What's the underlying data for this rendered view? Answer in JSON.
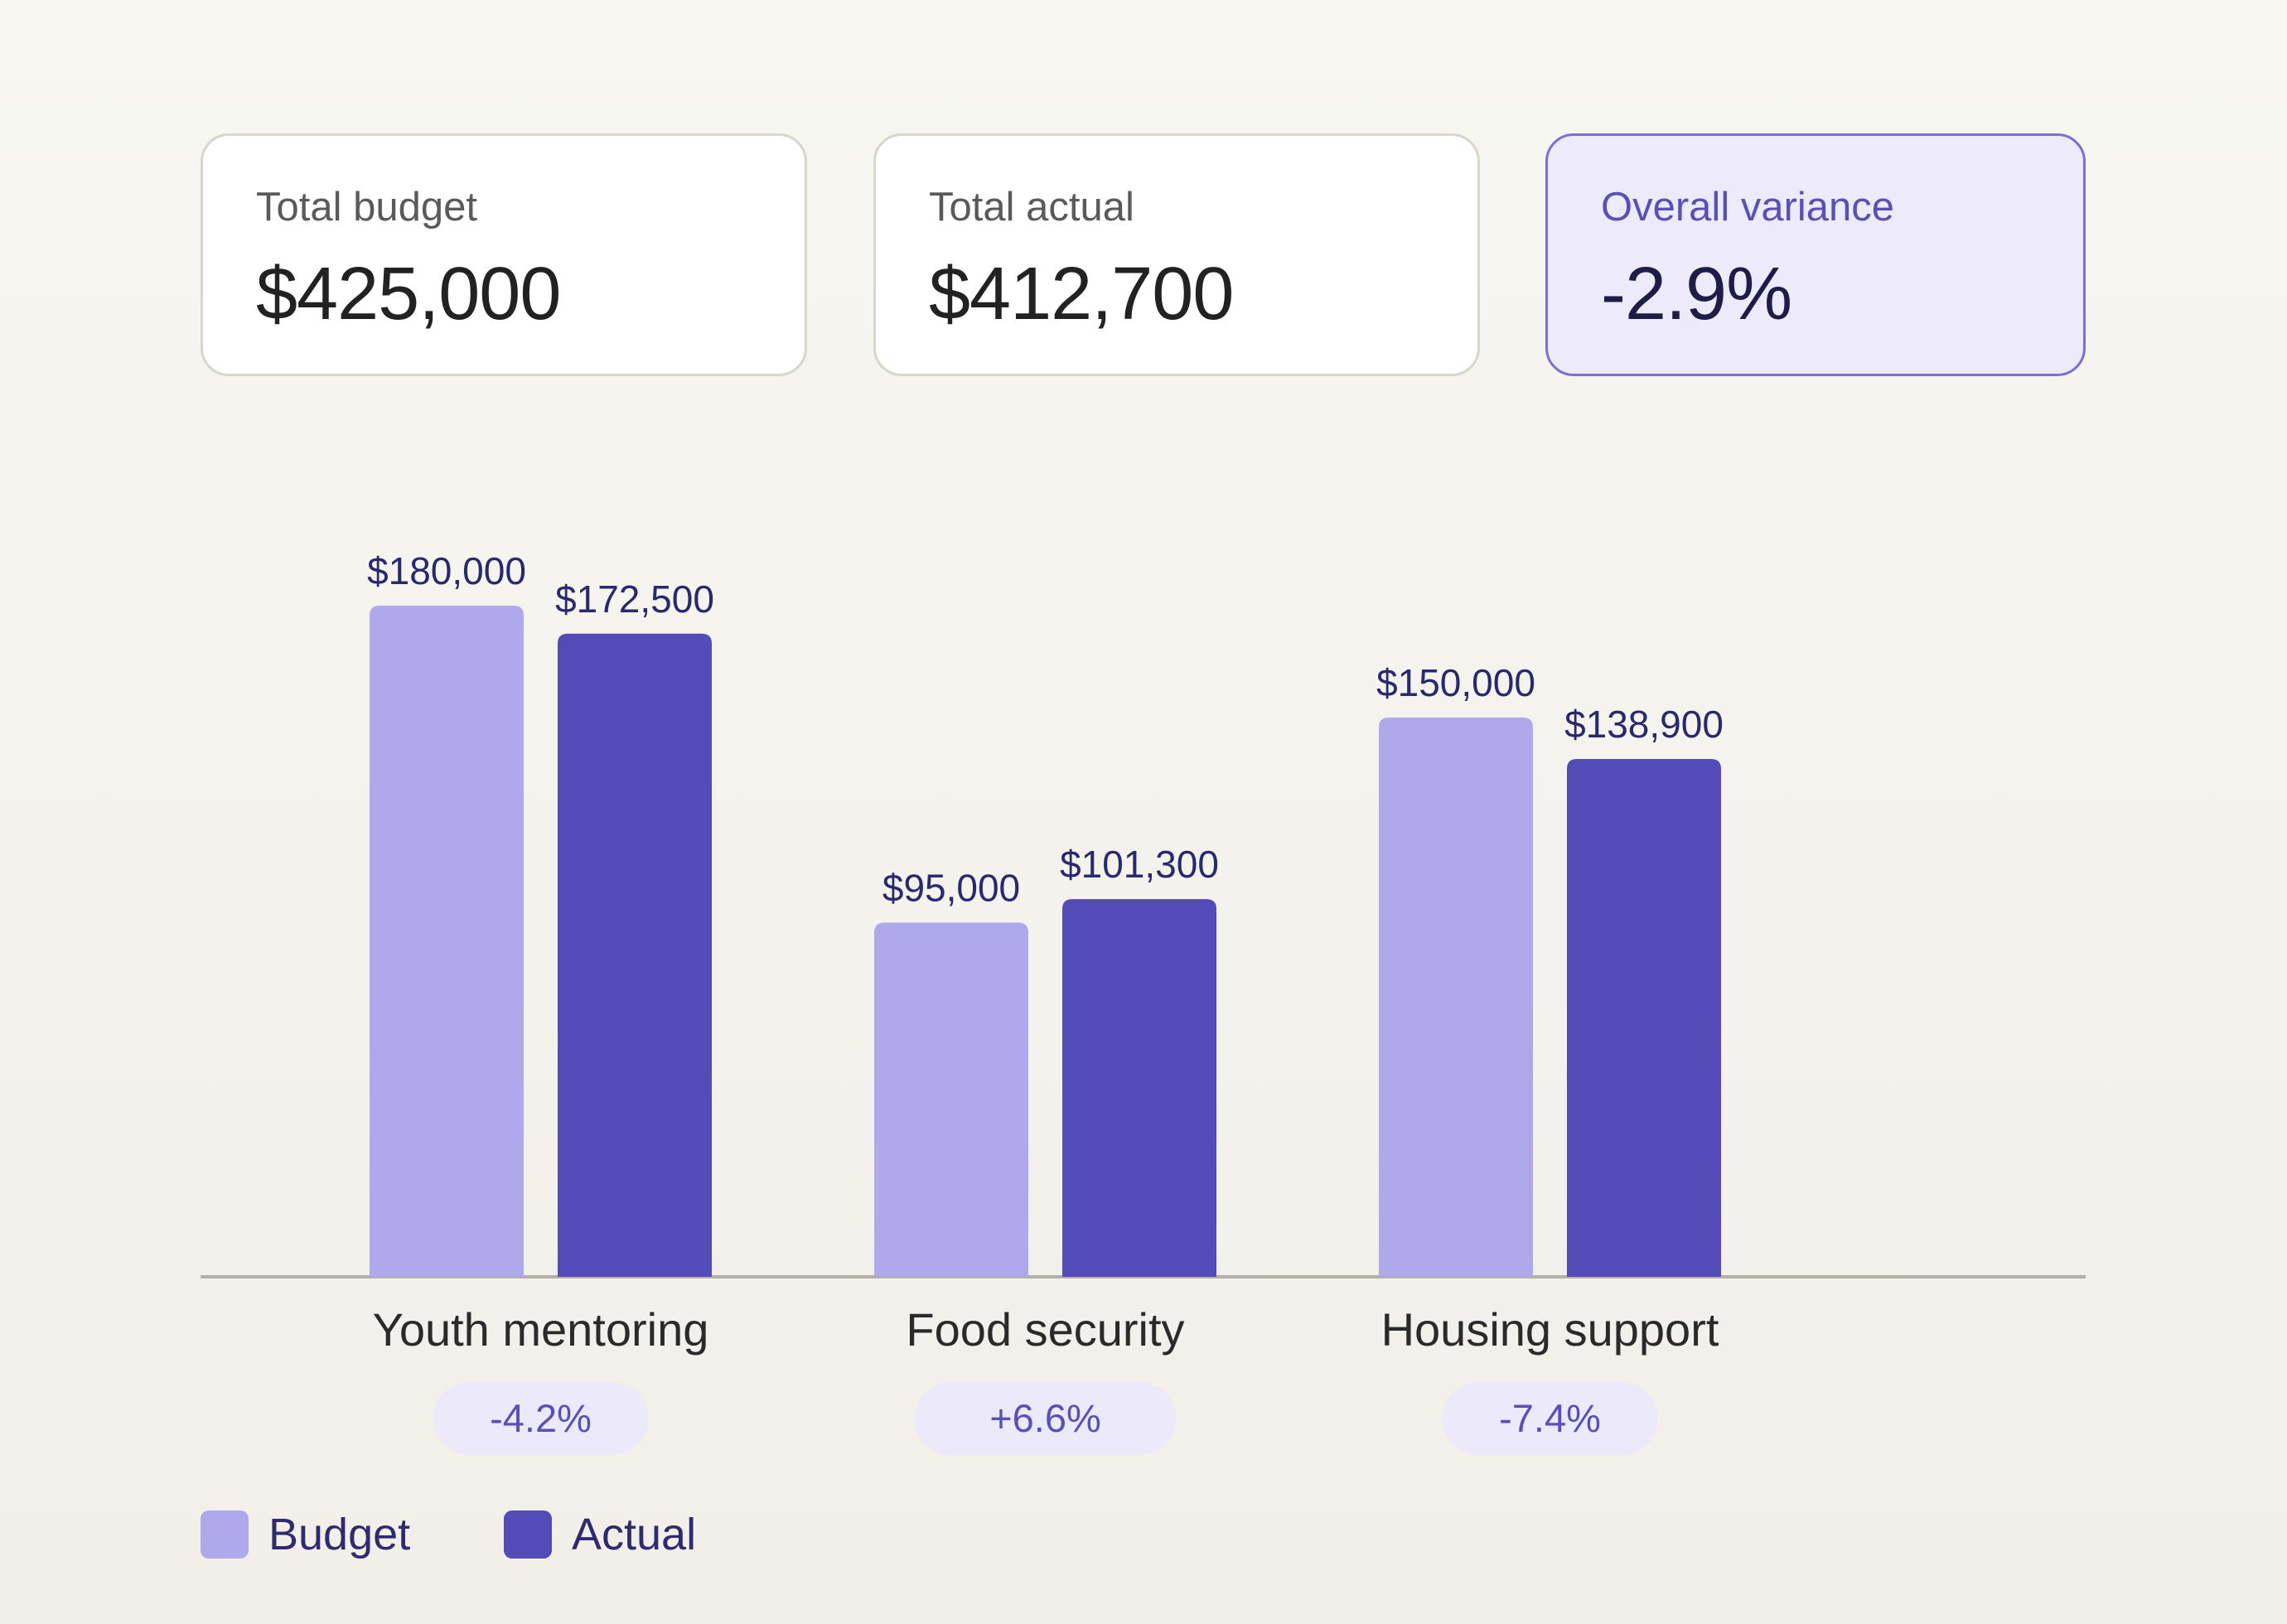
{
  "summary": {
    "total_budget": {
      "label": "Total budget",
      "value": "$425,000"
    },
    "total_actual": {
      "label": "Total actual",
      "value": "$412,700"
    },
    "overall_variance": {
      "label": "Overall variance",
      "value": "-2.9%"
    }
  },
  "colors": {
    "budget": "#afa8ea",
    "actual": "#534bb8",
    "axis": "#b3b0a8",
    "label_text": "#2a2870",
    "badge_bg": "#ebe9fa",
    "badge_text": "#5a4fba"
  },
  "chart_data": {
    "type": "bar",
    "categories": [
      "Youth mentoring",
      "Food security",
      "Housing support"
    ],
    "series": [
      {
        "name": "Budget",
        "values": [
          180000,
          95000,
          150000
        ],
        "value_labels": [
          "$180,000",
          "$95,000",
          "$150,000"
        ]
      },
      {
        "name": "Actual",
        "values": [
          172500,
          101300,
          138900
        ],
        "value_labels": [
          "$172,500",
          "$101,300",
          "$138,900"
        ]
      }
    ],
    "variance_badges": [
      "-4.2%",
      "+6.6%",
      "-7.4%"
    ],
    "ylim": [
      0,
      180000
    ],
    "grid": false,
    "legend": "bottom-left"
  }
}
